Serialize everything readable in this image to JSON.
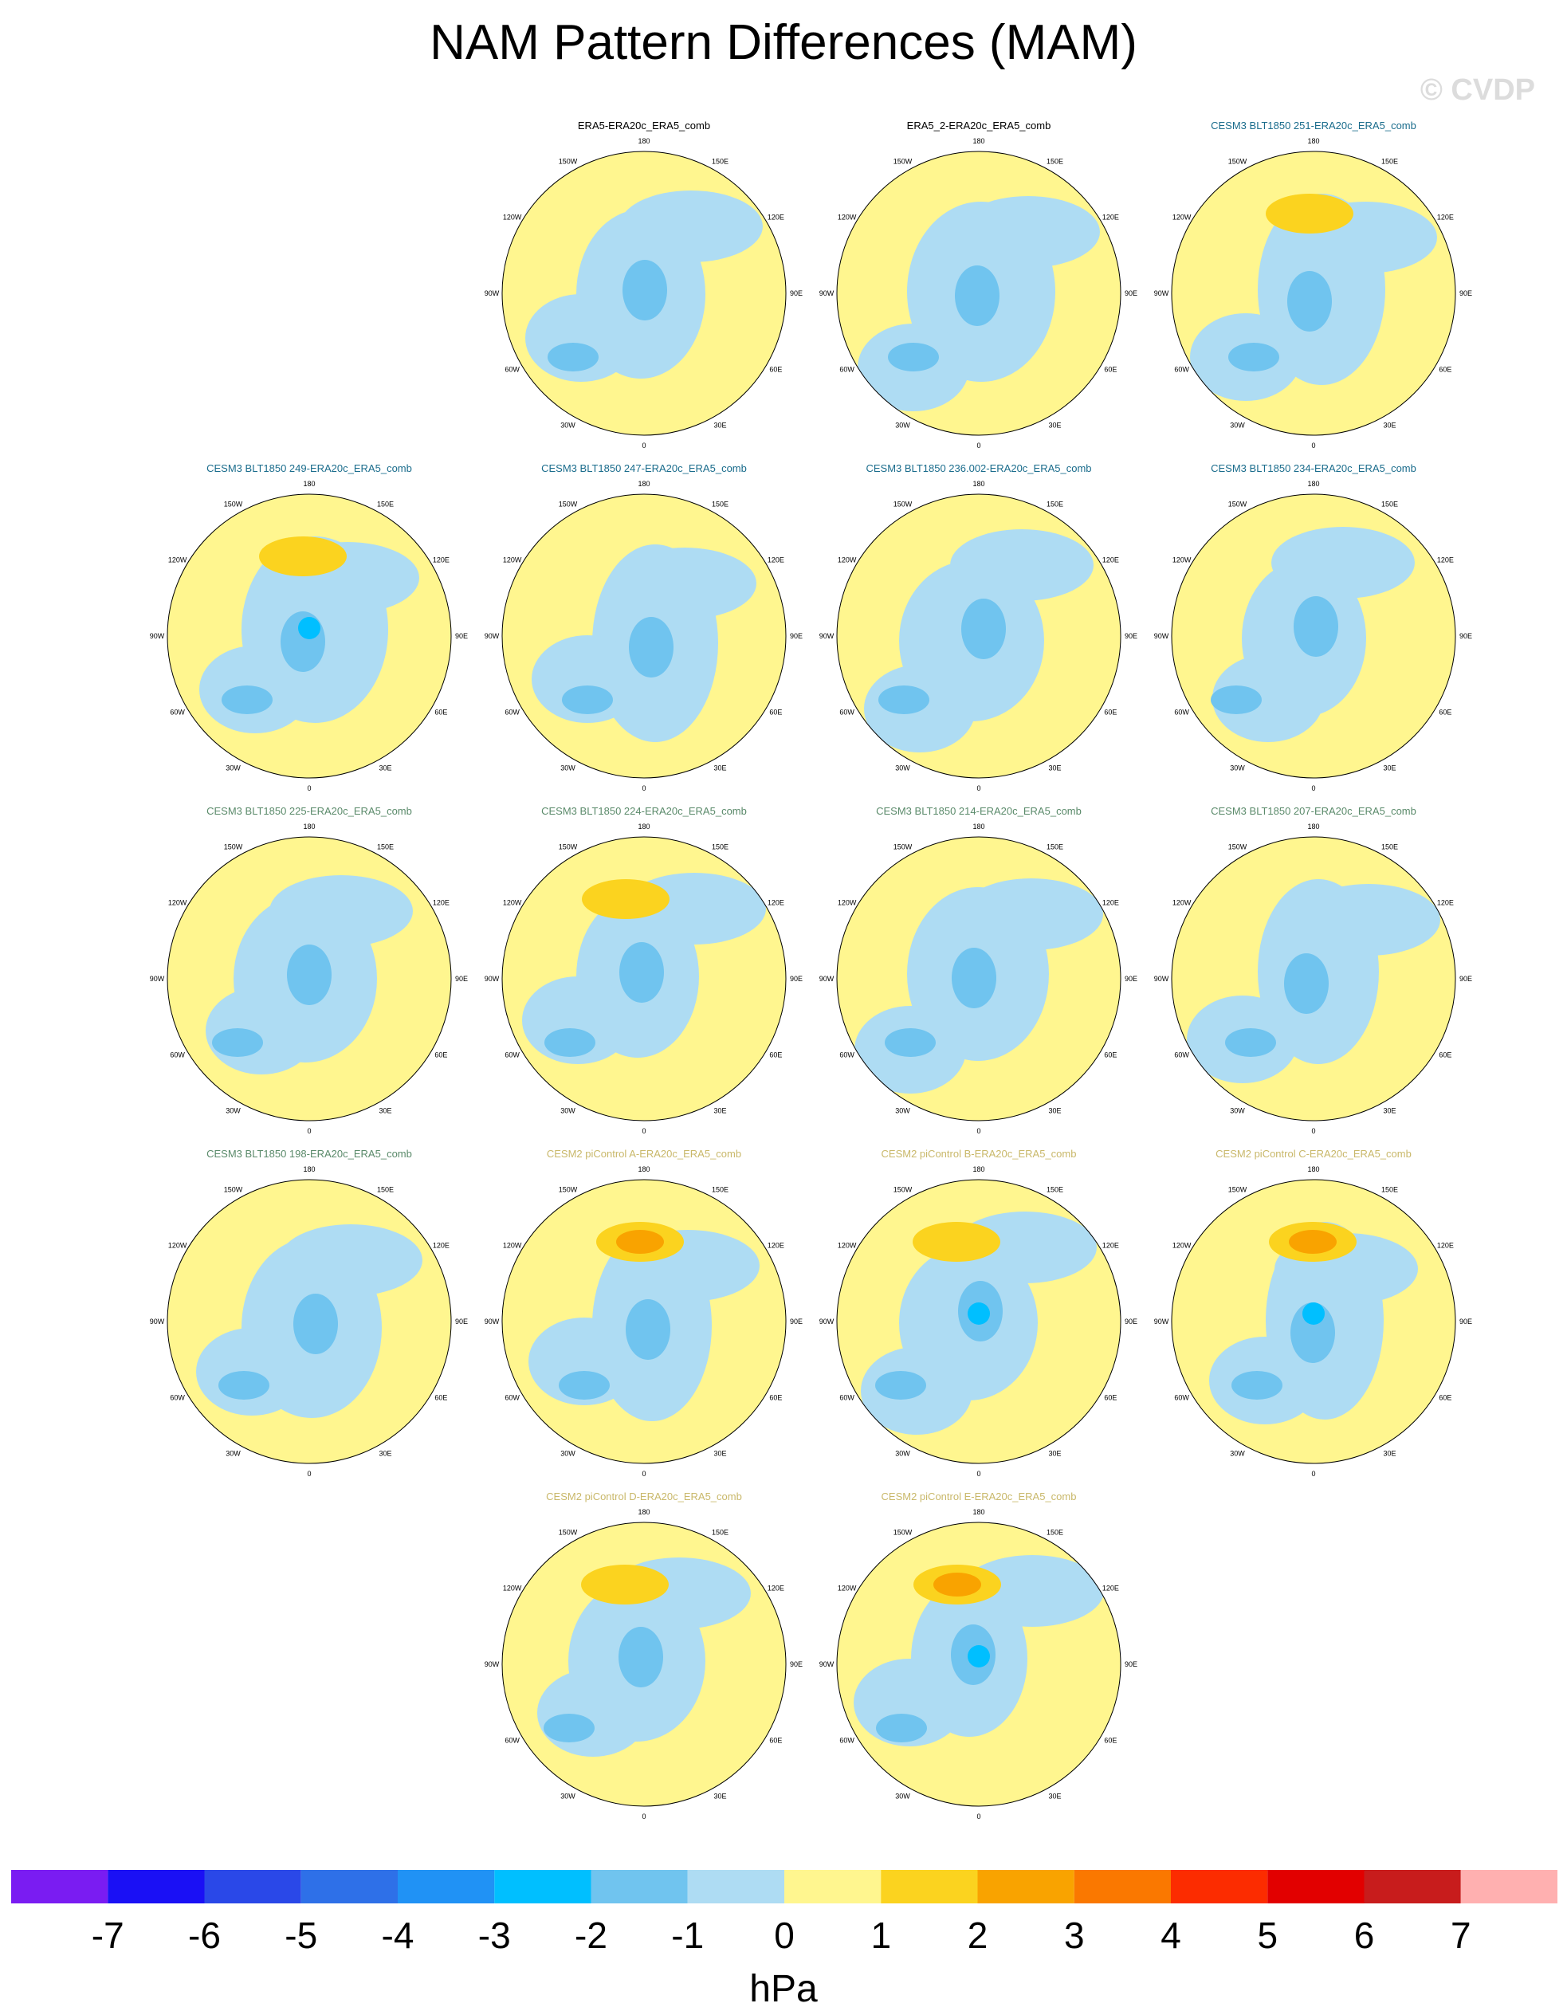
{
  "title": "NAM Pattern Differences (MAM)",
  "watermark": "© CVDP",
  "lon_labels": [
    "180",
    "150E",
    "120E",
    "90E",
    "60E",
    "30E",
    "0",
    "30W",
    "60W",
    "90W",
    "120W",
    "150W"
  ],
  "colors": {
    "neg1": "#aedcf3",
    "neg2": "#70c4ef",
    "neg3": "#00bfff",
    "pos1": "#fff68f",
    "pos2": "#fbd31f",
    "pos3": "#f9a300",
    "obs_title": "#000000",
    "cesm3_blue_title": "#1a6c8c",
    "cesm3_green_title": "#5a8a6a",
    "cesm2_title": "#c9b86a"
  },
  "chart_data": {
    "type": "heatmap",
    "projection": "north-polar-stereographic",
    "units": "hPa",
    "panels": [
      {
        "title": "ERA5-ERA20c_ERA5_comb",
        "group": "obs",
        "dominant_sign": "mixed",
        "max_abs_hPa": 1
      },
      {
        "title": "ERA5_2-ERA20c_ERA5_comb",
        "group": "obs",
        "dominant_sign": "mixed",
        "max_abs_hPa": 2
      },
      {
        "title": "CESM3 BLT1850 251-ERA20c_ERA5_comb",
        "group": "cesm3_blue",
        "dominant_sign": "mixed",
        "max_abs_hPa": 2
      },
      {
        "title": "CESM3 BLT1850 249-ERA20c_ERA5_comb",
        "group": "cesm3_blue",
        "dominant_sign": "mixed",
        "max_abs_hPa": 3
      },
      {
        "title": "CESM3 BLT1850 247-ERA20c_ERA5_comb",
        "group": "cesm3_blue",
        "dominant_sign": "mixed",
        "max_abs_hPa": 2
      },
      {
        "title": "CESM3 BLT1850 236.002-ERA20c_ERA5_comb",
        "group": "cesm3_blue",
        "dominant_sign": "mixed",
        "max_abs_hPa": 2
      },
      {
        "title": "CESM3 BLT1850 234-ERA20c_ERA5_comb",
        "group": "cesm3_blue",
        "dominant_sign": "mixed",
        "max_abs_hPa": 2
      },
      {
        "title": "CESM3 BLT1850 225-ERA20c_ERA5_comb",
        "group": "cesm3_green",
        "dominant_sign": "mixed",
        "max_abs_hPa": 2
      },
      {
        "title": "CESM3 BLT1850 224-ERA20c_ERA5_comb",
        "group": "cesm3_green",
        "dominant_sign": "mixed",
        "max_abs_hPa": 2
      },
      {
        "title": "CESM3 BLT1850 214-ERA20c_ERA5_comb",
        "group": "cesm3_green",
        "dominant_sign": "mixed",
        "max_abs_hPa": 2
      },
      {
        "title": "CESM3 BLT1850 207-ERA20c_ERA5_comb",
        "group": "cesm3_green",
        "dominant_sign": "mixed",
        "max_abs_hPa": 2
      },
      {
        "title": "CESM3 BLT1850 198-ERA20c_ERA5_comb",
        "group": "cesm3_green",
        "dominant_sign": "mixed",
        "max_abs_hPa": 2
      },
      {
        "title": "CESM2 piControl A-ERA20c_ERA5_comb",
        "group": "cesm2",
        "dominant_sign": "mixed",
        "max_abs_hPa": 3
      },
      {
        "title": "CESM2 piControl B-ERA20c_ERA5_comb",
        "group": "cesm2",
        "dominant_sign": "mixed",
        "max_abs_hPa": 3
      },
      {
        "title": "CESM2 piControl C-ERA20c_ERA5_comb",
        "group": "cesm2",
        "dominant_sign": "mixed",
        "max_abs_hPa": 3
      },
      {
        "title": "CESM2 piControl D-ERA20c_ERA5_comb",
        "group": "cesm2",
        "dominant_sign": "mixed",
        "max_abs_hPa": 2
      },
      {
        "title": "CESM2 piControl E-ERA20c_ERA5_comb",
        "group": "cesm2",
        "dominant_sign": "mixed",
        "max_abs_hPa": 3
      }
    ],
    "colorbar": {
      "label": "hPa",
      "levels": [
        "-7",
        "-6",
        "-5",
        "-4",
        "-3",
        "-2",
        "-1",
        "0",
        "1",
        "2",
        "3",
        "4",
        "5",
        "6",
        "7"
      ],
      "colors": [
        "#7a1cf2",
        "#1a10f5",
        "#2a48e8",
        "#2e70e8",
        "#2092f5",
        "#00bfff",
        "#70c4ef",
        "#aedcf3",
        "#fff68f",
        "#fbd31f",
        "#f9a300",
        "#fa7800",
        "#fc2c00",
        "#e20000",
        "#c81c1c",
        "#ffb0b0"
      ]
    }
  }
}
